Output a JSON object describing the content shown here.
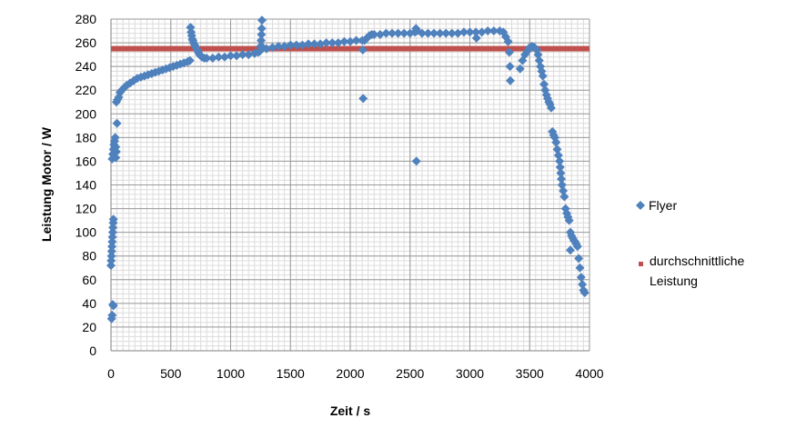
{
  "chart_data": {
    "type": "scatter",
    "title": "",
    "xlabel": "Zeit / s",
    "ylabel": "Leistung Motor / W",
    "xlim": [
      0,
      4000
    ],
    "ylim": [
      0,
      280
    ],
    "x_ticks": [
      "0",
      "500",
      "1000",
      "1500",
      "2000",
      "2500",
      "3000",
      "3500",
      "4000"
    ],
    "y_ticks": [
      "0",
      "20",
      "40",
      "60",
      "80",
      "100",
      "120",
      "140",
      "160",
      "180",
      "200",
      "220",
      "240",
      "260",
      "280"
    ],
    "x_tick_values": [
      0,
      500,
      1000,
      1500,
      2000,
      2500,
      3000,
      3500,
      4000
    ],
    "y_tick_values": [
      0,
      20,
      40,
      60,
      80,
      100,
      120,
      140,
      160,
      180,
      200,
      220,
      240,
      260,
      280
    ],
    "grid": true,
    "minor_grid": true,
    "legend_position": "right",
    "series": [
      {
        "name": "Flyer",
        "color": "#4f81bd",
        "marker": "diamond",
        "points": [
          [
            0,
            72
          ],
          [
            2,
            76
          ],
          [
            4,
            80
          ],
          [
            6,
            84
          ],
          [
            8,
            88
          ],
          [
            10,
            92
          ],
          [
            12,
            96
          ],
          [
            14,
            100
          ],
          [
            16,
            104
          ],
          [
            18,
            108
          ],
          [
            20,
            111
          ],
          [
            5,
            27
          ],
          [
            10,
            30
          ],
          [
            15,
            39
          ],
          [
            20,
            38
          ],
          [
            10,
            162
          ],
          [
            15,
            166
          ],
          [
            20,
            170
          ],
          [
            25,
            174
          ],
          [
            30,
            177
          ],
          [
            35,
            180
          ],
          [
            40,
            172
          ],
          [
            45,
            168
          ],
          [
            40,
            163
          ],
          [
            50,
            192
          ],
          [
            45,
            210
          ],
          [
            55,
            212
          ],
          [
            65,
            214
          ],
          [
            75,
            218
          ],
          [
            90,
            220
          ],
          [
            110,
            222
          ],
          [
            130,
            224
          ],
          [
            160,
            226
          ],
          [
            190,
            228
          ],
          [
            220,
            230
          ],
          [
            250,
            231
          ],
          [
            280,
            232
          ],
          [
            310,
            233
          ],
          [
            340,
            234
          ],
          [
            370,
            235
          ],
          [
            400,
            236
          ],
          [
            430,
            237
          ],
          [
            460,
            238
          ],
          [
            490,
            239
          ],
          [
            520,
            240
          ],
          [
            550,
            241
          ],
          [
            580,
            242
          ],
          [
            610,
            243
          ],
          [
            640,
            244
          ],
          [
            660,
            245
          ],
          [
            665,
            273
          ],
          [
            670,
            269
          ],
          [
            675,
            266
          ],
          [
            680,
            263
          ],
          [
            685,
            262
          ],
          [
            690,
            260
          ],
          [
            700,
            258
          ],
          [
            710,
            256
          ],
          [
            720,
            254
          ],
          [
            730,
            252
          ],
          [
            740,
            250
          ],
          [
            750,
            249
          ],
          [
            760,
            248
          ],
          [
            780,
            247
          ],
          [
            800,
            247
          ],
          [
            850,
            247
          ],
          [
            900,
            248
          ],
          [
            950,
            248
          ],
          [
            1000,
            249
          ],
          [
            1050,
            249
          ],
          [
            1100,
            250
          ],
          [
            1150,
            250
          ],
          [
            1200,
            251
          ],
          [
            1230,
            252
          ],
          [
            1245,
            253
          ],
          [
            1250,
            257
          ],
          [
            1255,
            262
          ],
          [
            1258,
            267
          ],
          [
            1260,
            272
          ],
          [
            1262,
            279
          ],
          [
            1270,
            256
          ],
          [
            1300,
            255
          ],
          [
            1350,
            256
          ],
          [
            1400,
            257
          ],
          [
            1450,
            257
          ],
          [
            1500,
            258
          ],
          [
            1550,
            258
          ],
          [
            1600,
            258
          ],
          [
            1650,
            259
          ],
          [
            1700,
            259
          ],
          [
            1750,
            259
          ],
          [
            1800,
            260
          ],
          [
            1850,
            260
          ],
          [
            1900,
            260
          ],
          [
            1950,
            261
          ],
          [
            2000,
            261
          ],
          [
            2050,
            262
          ],
          [
            2100,
            262
          ],
          [
            2105,
            254
          ],
          [
            2108,
            213
          ],
          [
            2120,
            262
          ],
          [
            2140,
            264
          ],
          [
            2160,
            266
          ],
          [
            2180,
            267
          ],
          [
            2200,
            267
          ],
          [
            2250,
            267
          ],
          [
            2300,
            268
          ],
          [
            2350,
            268
          ],
          [
            2400,
            268
          ],
          [
            2450,
            268
          ],
          [
            2500,
            268
          ],
          [
            2540,
            269
          ],
          [
            2550,
            272
          ],
          [
            2560,
            270
          ],
          [
            2553,
            160
          ],
          [
            2600,
            268
          ],
          [
            2650,
            268
          ],
          [
            2700,
            268
          ],
          [
            2750,
            268
          ],
          [
            2800,
            268
          ],
          [
            2850,
            268
          ],
          [
            2900,
            268
          ],
          [
            2950,
            269
          ],
          [
            3000,
            269
          ],
          [
            3050,
            269
          ],
          [
            3055,
            264
          ],
          [
            3100,
            269
          ],
          [
            3150,
            270
          ],
          [
            3200,
            270
          ],
          [
            3250,
            270
          ],
          [
            3280,
            269
          ],
          [
            3300,
            265
          ],
          [
            3320,
            261
          ],
          [
            3330,
            252
          ],
          [
            3335,
            240
          ],
          [
            3338,
            228
          ],
          [
            3420,
            238
          ],
          [
            3440,
            245
          ],
          [
            3460,
            250
          ],
          [
            3480,
            253
          ],
          [
            3500,
            256
          ],
          [
            3520,
            257
          ],
          [
            3540,
            256
          ],
          [
            3560,
            254
          ],
          [
            3570,
            250
          ],
          [
            3580,
            245
          ],
          [
            3590,
            240
          ],
          [
            3600,
            236
          ],
          [
            3610,
            232
          ],
          [
            3620,
            225
          ],
          [
            3630,
            220
          ],
          [
            3640,
            216
          ],
          [
            3650,
            213
          ],
          [
            3660,
            210
          ],
          [
            3670,
            208
          ],
          [
            3680,
            205
          ],
          [
            3690,
            185
          ],
          [
            3700,
            182
          ],
          [
            3710,
            180
          ],
          [
            3720,
            176
          ],
          [
            3730,
            170
          ],
          [
            3740,
            165
          ],
          [
            3750,
            160
          ],
          [
            3755,
            155
          ],
          [
            3760,
            150
          ],
          [
            3765,
            145
          ],
          [
            3770,
            140
          ],
          [
            3780,
            135
          ],
          [
            3790,
            130
          ],
          [
            3800,
            120
          ],
          [
            3810,
            116
          ],
          [
            3820,
            113
          ],
          [
            3830,
            110
          ],
          [
            3840,
            100
          ],
          [
            3850,
            97
          ],
          [
            3860,
            95
          ],
          [
            3870,
            93
          ],
          [
            3880,
            92
          ],
          [
            3890,
            90
          ],
          [
            3900,
            88
          ],
          [
            3840,
            85
          ],
          [
            3910,
            78
          ],
          [
            3920,
            70
          ],
          [
            3930,
            62
          ],
          [
            3940,
            56
          ],
          [
            3950,
            51
          ],
          [
            3960,
            49
          ]
        ]
      },
      {
        "name": "durchschnittliche Leistung",
        "color": "#c0504d",
        "marker": "square",
        "points": [
          [
            0,
            255
          ],
          [
            4000,
            255
          ]
        ]
      }
    ]
  },
  "legend": {
    "flyer_label": "Flyer",
    "avg_label_line1": "durchschnittliche",
    "avg_label_line2": "Leistung"
  }
}
